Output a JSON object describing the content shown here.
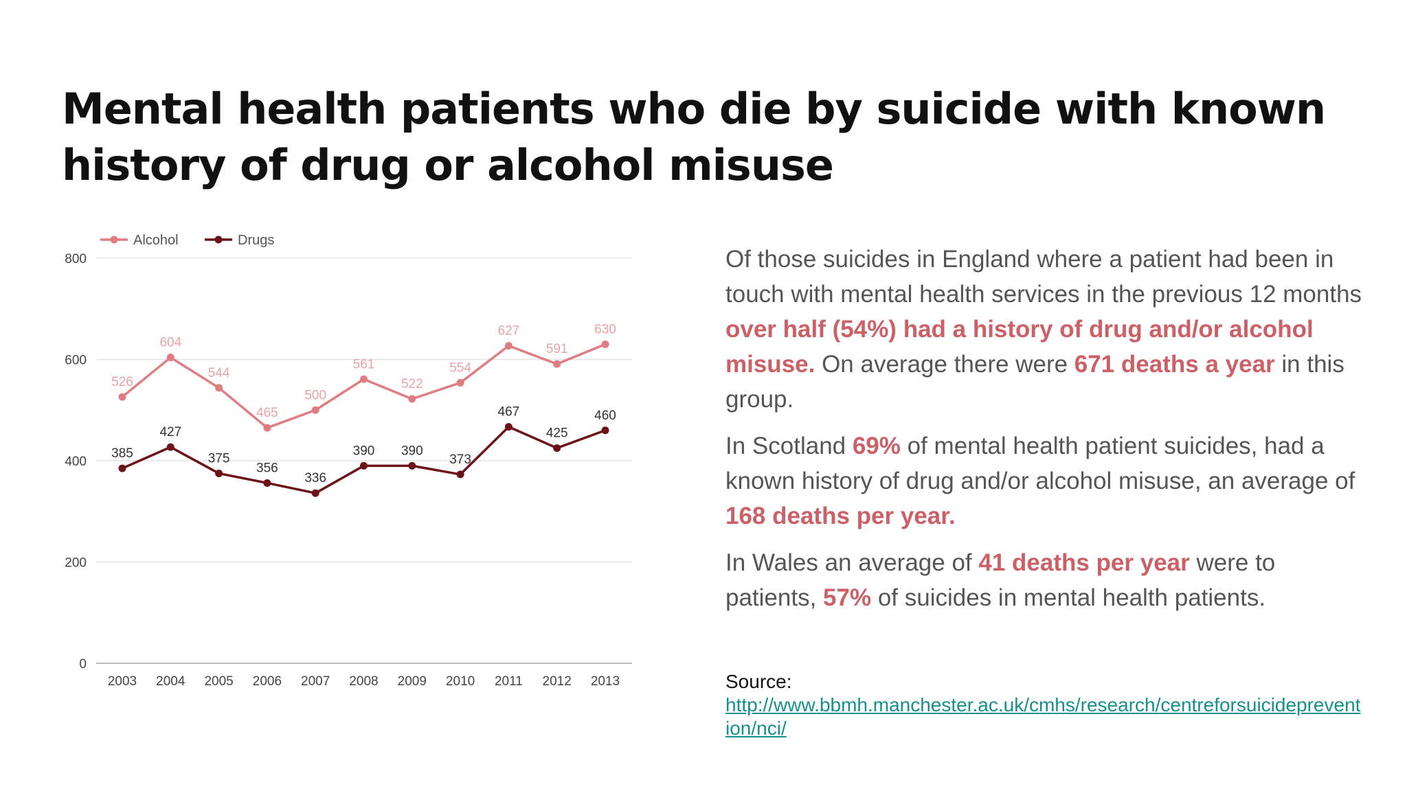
{
  "title": {
    "line1": "Mental health patients who die by suicide with known",
    "line2": "history of drug or alcohol misuse"
  },
  "chart_data": {
    "type": "line",
    "x": [
      "2003",
      "2004",
      "2005",
      "2006",
      "2007",
      "2008",
      "2009",
      "2010",
      "2011",
      "2012",
      "2013"
    ],
    "series": [
      {
        "name": "Alcohol",
        "color": "#e07d82",
        "values": [
          526,
          604,
          544,
          465,
          500,
          561,
          522,
          554,
          627,
          591,
          630
        ]
      },
      {
        "name": "Drugs",
        "color": "#6b1318",
        "values": [
          385,
          427,
          375,
          356,
          336,
          390,
          390,
          373,
          467,
          425,
          460
        ]
      }
    ],
    "y_ticks": [
      0,
      200,
      400,
      600,
      800
    ],
    "ylim": [
      0,
      800
    ],
    "grid": true,
    "legend": "top-left"
  },
  "text": {
    "p1_a": "Of those suicides in England where a patient had been in touch with mental health services in the previous 12 months ",
    "p1_hl1": "over half (54%) had a history of drug and/or alcohol misuse",
    "p1_dot": ".",
    "p1_b": " On average there were ",
    "p1_hl2": "671 deaths a year",
    "p1_c": " in this group.",
    "p2_a": "In Scotland ",
    "p2_hl1": "69%",
    "p2_b": " of mental health patient suicides, had a known history of drug and/or alcohol misuse, an average of ",
    "p2_hl2": "168 deaths per year",
    "p2_dot": ".",
    "p3_a": "In Wales an average of ",
    "p3_hl1": "41 deaths per year",
    "p3_b": " were to patients, ",
    "p3_hl2": "57%",
    "p3_c": " of suicides in mental health patients."
  },
  "source": {
    "label": "Source:",
    "url": "http://www.bbmh.manchester.ac.uk/cmhs/research/centreforsuicideprevention/nci/"
  }
}
